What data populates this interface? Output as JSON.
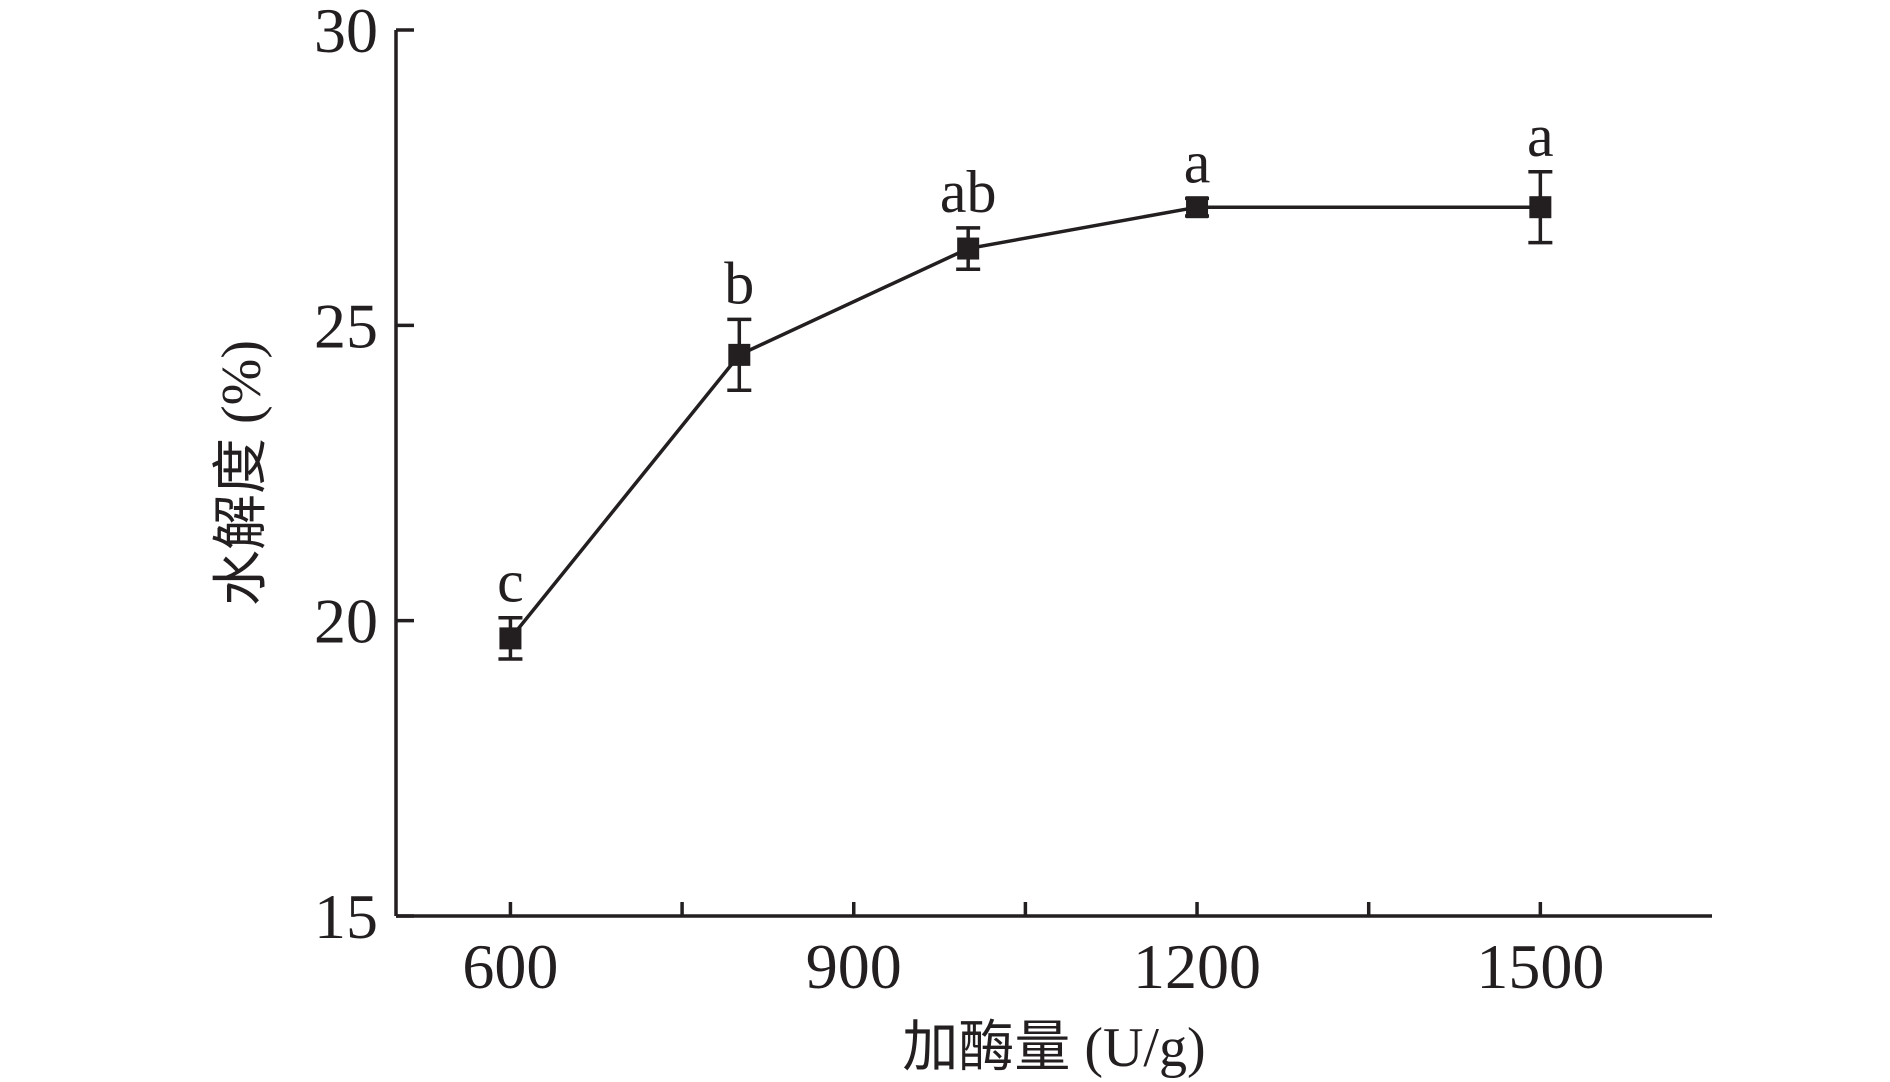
{
  "chart_data": {
    "type": "line",
    "xlabel": "加酶量 (U/g)",
    "ylabel": "水解度 (%)",
    "xlim": [
      500,
      1650
    ],
    "ylim": [
      15,
      30
    ],
    "x_ticks": [
      600,
      900,
      1200,
      1500
    ],
    "x_minor_ticks": [
      750,
      1050,
      1350
    ],
    "y_ticks": [
      15,
      20,
      25,
      30
    ],
    "grid": false,
    "series": [
      {
        "x": [
          600,
          800,
          1000,
          1200,
          1500
        ],
        "y": [
          19.7,
          24.5,
          26.3,
          27.0,
          27.0
        ],
        "error": [
          0.35,
          0.6,
          0.35,
          0.15,
          0.6
        ],
        "labels": [
          "c",
          "b",
          "ab",
          "a",
          "a"
        ],
        "color": "#231f20",
        "marker": "square"
      }
    ]
  }
}
